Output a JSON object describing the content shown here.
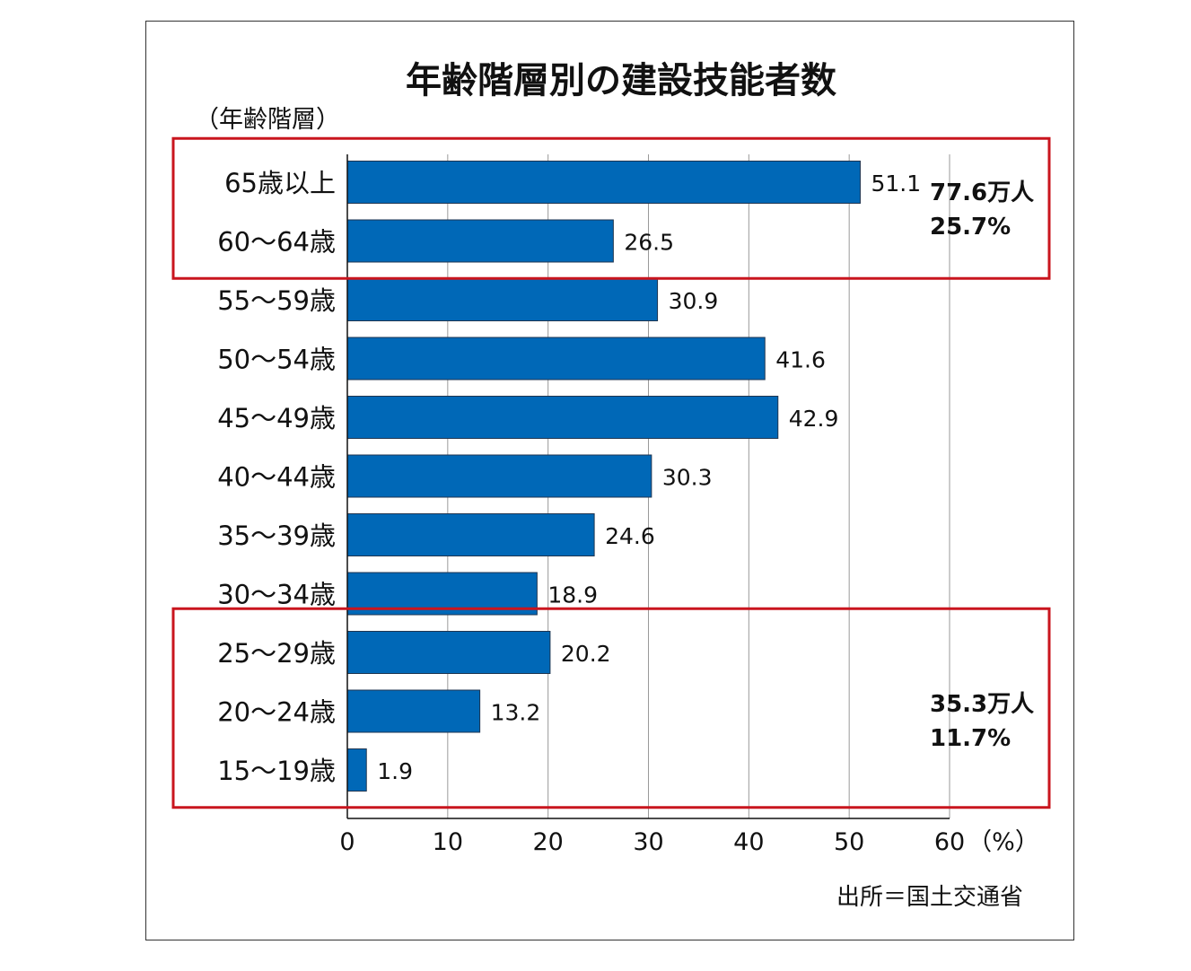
{
  "chart_data": {
    "type": "bar",
    "orientation": "horizontal",
    "title": "年齢階層別の建設技能者数",
    "ylabel": "（年齢階層）",
    "xlabel": "（%）",
    "categories": [
      "65歳以上",
      "60～64歳",
      "55～59歳",
      "50～54歳",
      "45～49歳",
      "40～44歳",
      "35～39歳",
      "30～34歳",
      "25～29歳",
      "20～24歳",
      "15～19歳"
    ],
    "values": [
      51.1,
      26.5,
      30.9,
      41.6,
      42.9,
      30.3,
      24.6,
      18.9,
      20.2,
      13.2,
      1.9
    ],
    "value_labels": [
      "51.1",
      "26.5",
      "30.9",
      "41.6",
      "42.9",
      "30.3",
      "24.6",
      "18.9",
      "20.2",
      "13.2",
      "1.9"
    ],
    "xlim": [
      0,
      60
    ],
    "xticks": [
      "0",
      "10",
      "20",
      "30",
      "40",
      "50",
      "60"
    ],
    "grid": true,
    "bar_color": "#0068b7",
    "highlight_color": "#c9151e",
    "highlight_groups": [
      {
        "categories": [
          "65歳以上",
          "60～64歳"
        ],
        "total": "77.6万人",
        "share": "25.7%"
      },
      {
        "categories": [
          "25～29歳",
          "20～24歳",
          "15～19歳"
        ],
        "total": "35.3万人",
        "share": "11.7%"
      }
    ],
    "source": "出所＝国土交通省"
  }
}
